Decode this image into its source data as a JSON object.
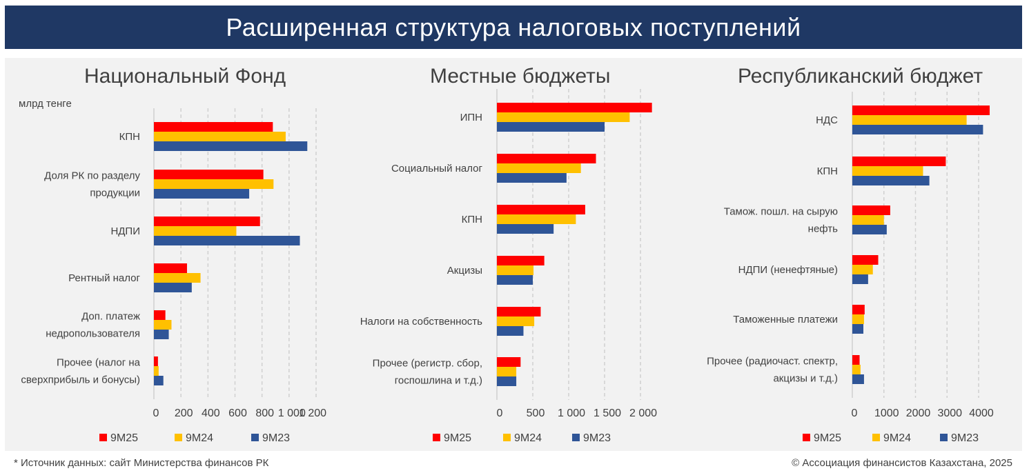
{
  "title": "Расширенная структура налоговых поступлений",
  "footer": {
    "source": "* Источник данных: сайт Министерства финансов РК",
    "copyright": "© Ассоциация финансистов Казахстана, 2025"
  },
  "colors": {
    "9M25": "#ff0000",
    "9M24": "#ffc000",
    "9M23": "#2f5597",
    "banner": "#1f3864"
  },
  "chart_data": [
    {
      "type": "bar",
      "orientation": "horizontal",
      "title": "Национальный Фонд",
      "unit": "млрд тенге",
      "categories": [
        [
          "КПН"
        ],
        [
          "Доля РК по разделу",
          "продукции"
        ],
        [
          "НДПИ"
        ],
        [
          "Рентный налог"
        ],
        [
          "Доп. платеж",
          "недропользователя"
        ],
        [
          "Прочее (налог на",
          "сверхприбыль и бонусы)"
        ]
      ],
      "series": [
        {
          "name": "9M25",
          "values": [
            880,
            810,
            785,
            245,
            85,
            30
          ]
        },
        {
          "name": "9M24",
          "values": [
            975,
            885,
            610,
            345,
            130,
            35
          ]
        },
        {
          "name": "9M23",
          "values": [
            1135,
            705,
            1080,
            280,
            110,
            70
          ]
        }
      ],
      "xlim": [
        0,
        1200
      ],
      "xticks": [
        0,
        200,
        400,
        600,
        800,
        1000,
        1200
      ],
      "xtick_labels": [
        "0",
        "200",
        "400",
        "600",
        "800",
        "1 000",
        "1 200"
      ],
      "grid": true,
      "legend_position": "bottom"
    },
    {
      "type": "bar",
      "orientation": "horizontal",
      "title": "Местные бюджеты",
      "unit": "",
      "categories": [
        [
          "ИПН"
        ],
        [
          "Социальный налог"
        ],
        [
          "КПН"
        ],
        [
          "Акцизы"
        ],
        [
          "Налоги на собственность"
        ],
        [
          "Прочее (регистр. сбор,",
          "госпошлина и т.д.)"
        ]
      ],
      "series": [
        {
          "name": "9M25",
          "values": [
            2160,
            1380,
            1230,
            660,
            610,
            330
          ]
        },
        {
          "name": "9M24",
          "values": [
            1850,
            1170,
            1100,
            510,
            520,
            270
          ]
        },
        {
          "name": "9M23",
          "values": [
            1500,
            970,
            790,
            500,
            370,
            270
          ]
        }
      ],
      "xlim": [
        0,
        2000
      ],
      "xticks": [
        0,
        500,
        1000,
        1500,
        2000
      ],
      "xtick_labels": [
        "0",
        "500",
        "1 000",
        "1 500",
        "2 000"
      ],
      "grid": true,
      "legend_position": "bottom"
    },
    {
      "type": "bar",
      "orientation": "horizontal",
      "title": "Республиканский бюджет",
      "unit": "",
      "categories": [
        [
          "НДС"
        ],
        [
          "КПН"
        ],
        [
          "Тамож. пошл. на сырую",
          "нефть"
        ],
        [
          "НДПИ (ненефтяные)"
        ],
        [
          "Таможенные платежи"
        ],
        [
          "Прочее (радиочаст. спектр,",
          "акцизы и т.д.)"
        ]
      ],
      "series": [
        {
          "name": "9M25",
          "values": [
            4350,
            2960,
            1200,
            820,
            390,
            230
          ]
        },
        {
          "name": "9M24",
          "values": [
            3620,
            2240,
            1000,
            650,
            370,
            260
          ]
        },
        {
          "name": "9M23",
          "values": [
            4140,
            2440,
            1090,
            500,
            350,
            370
          ]
        }
      ],
      "xlim": [
        0,
        4000
      ],
      "xticks": [
        0,
        1000,
        2000,
        3000,
        4000
      ],
      "xtick_labels": [
        "0",
        "1000",
        "2000",
        "3000",
        "4000"
      ],
      "grid": true,
      "legend_position": "bottom"
    }
  ]
}
